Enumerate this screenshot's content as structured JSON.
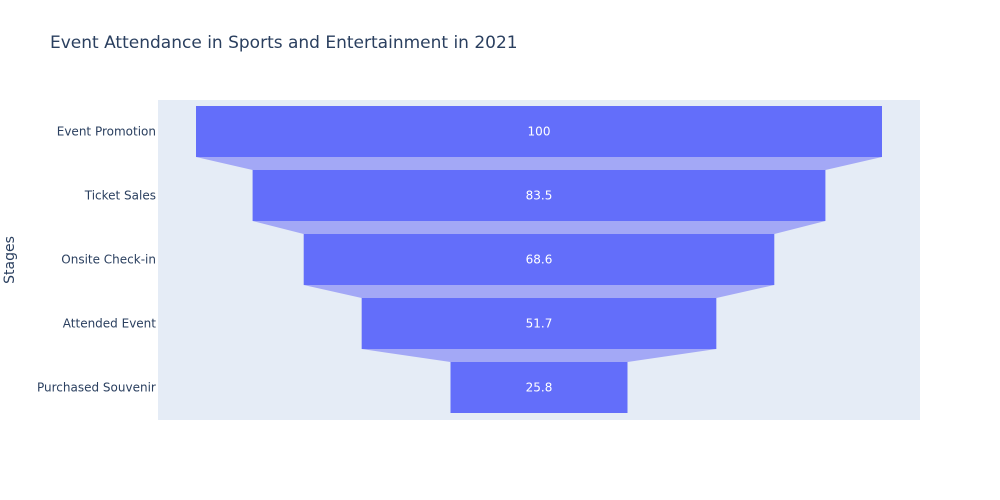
{
  "chart_data": {
    "type": "funnel",
    "title": "Event Attendance in Sports and Entertainment in 2021",
    "ylabel": "Stages",
    "xlabel": "",
    "categories": [
      "Event Promotion",
      "Ticket Sales",
      "Onsite Check-in",
      "Attended Event",
      "Purchased Souvenir"
    ],
    "values": [
      100,
      83.5,
      68.6,
      51.7,
      25.8
    ],
    "value_labels": [
      "100",
      "83.5",
      "68.6",
      "51.7",
      "25.8"
    ],
    "grid": false,
    "legend": "none"
  },
  "colors": {
    "bar": "#636efa",
    "connector": "#a3a8f6",
    "plot_background": "#e5ecf6",
    "text": "#2a3f5f"
  }
}
